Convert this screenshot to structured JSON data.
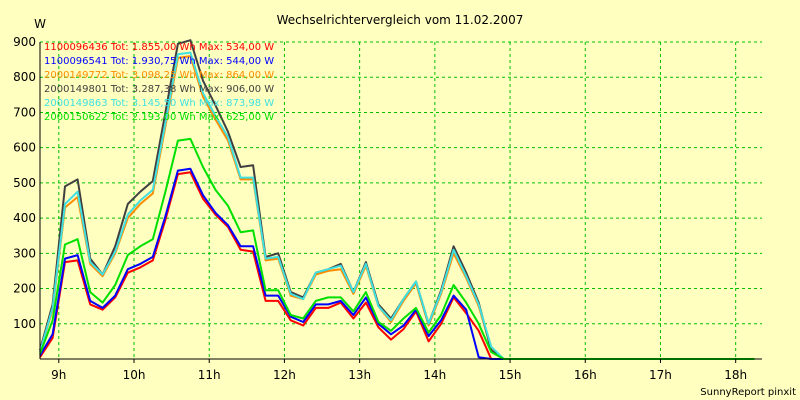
{
  "chart_data": {
    "type": "line",
    "title": "Wechselrichtervergleich vom 11.02.2007",
    "ylabel": "W",
    "xlabel": "",
    "ylim": [
      0,
      900
    ],
    "y_ticks": [
      100,
      200,
      300,
      400,
      500,
      600,
      700,
      800,
      900
    ],
    "xlim": [
      8.75,
      18.35
    ],
    "x_ticks": [
      {
        "value": 9,
        "label": "9h"
      },
      {
        "value": 10,
        "label": "10h"
      },
      {
        "value": 11,
        "label": "11h"
      },
      {
        "value": 12,
        "label": "12h"
      },
      {
        "value": 13,
        "label": "13h"
      },
      {
        "value": 14,
        "label": "14h"
      },
      {
        "value": 15,
        "label": "15h"
      },
      {
        "value": 16,
        "label": "16h"
      },
      {
        "value": 17,
        "label": "17h"
      },
      {
        "value": 18,
        "label": "18h"
      }
    ],
    "grid": true,
    "legend_position": "top-left",
    "x": [
      8.75,
      8.917,
      9.083,
      9.25,
      9.417,
      9.583,
      9.75,
      9.917,
      10.083,
      10.25,
      10.417,
      10.583,
      10.75,
      10.917,
      11.083,
      11.25,
      11.417,
      11.583,
      11.75,
      11.917,
      12.083,
      12.25,
      12.417,
      12.583,
      12.75,
      12.917,
      13.083,
      13.25,
      13.417,
      13.583,
      13.75,
      13.917,
      14.083,
      14.25,
      14.417,
      14.583,
      14.75,
      14.917,
      15.083,
      15.25,
      15.417,
      15.583,
      15.75,
      15.917,
      16.083,
      16.25,
      16.417,
      16.583,
      16.75,
      16.917,
      17.083,
      17.25,
      17.417,
      17.583,
      17.75,
      17.917,
      18.083,
      18.25
    ],
    "series": [
      {
        "name": "1100096436",
        "legend": "1100096436 Tot: 1.855,00 Wh Max: 534,00 W",
        "color": "#ff0000",
        "values": [
          5,
          60,
          275,
          280,
          155,
          140,
          175,
          245,
          260,
          280,
          395,
          525,
          530,
          455,
          410,
          375,
          310,
          305,
          165,
          165,
          110,
          95,
          145,
          145,
          160,
          115,
          160,
          90,
          55,
          85,
          135,
          50,
          100,
          175,
          130,
          80,
          0,
          0,
          0,
          0,
          0,
          0,
          0,
          0,
          0,
          0,
          0,
          0,
          0,
          0,
          0,
          0,
          0,
          0,
          0,
          0,
          0,
          0
        ]
      },
      {
        "name": "1100096541",
        "legend": "1100096541 Tot: 1.930,75 Wh Max: 544,00 W",
        "color": "#0000ff",
        "values": [
          10,
          70,
          285,
          295,
          165,
          145,
          180,
          255,
          270,
          290,
          405,
          535,
          540,
          465,
          415,
          380,
          320,
          320,
          180,
          180,
          120,
          105,
          155,
          155,
          165,
          125,
          175,
          100,
          70,
          95,
          140,
          65,
          110,
          180,
          140,
          5,
          0,
          0,
          0,
          0,
          0,
          0,
          0,
          0,
          0,
          0,
          0,
          0,
          0,
          0,
          0,
          0,
          0,
          0,
          0,
          0,
          0,
          0
        ]
      },
      {
        "name": "2000149772",
        "legend": "2000149772 Tot: 3.098,25 Wh Max: 864,00 W",
        "color": "#ff8c00",
        "values": [
          20,
          140,
          430,
          460,
          270,
          235,
          300,
          400,
          440,
          470,
          660,
          855,
          860,
          745,
          680,
          620,
          510,
          510,
          280,
          285,
          180,
          170,
          240,
          250,
          255,
          185,
          265,
          150,
          105,
          165,
          215,
          95,
          185,
          300,
          230,
          150,
          30,
          0,
          0,
          0,
          0,
          0,
          0,
          0,
          0,
          0,
          0,
          0,
          0,
          0,
          0,
          0,
          0,
          0,
          0,
          0,
          0,
          0
        ]
      },
      {
        "name": "2000149801",
        "legend": "2000149801 Tot: 3.287,38 Wh Max: 906,00 W",
        "color": "#404040",
        "values": [
          25,
          155,
          490,
          510,
          285,
          240,
          320,
          440,
          475,
          505,
          700,
          895,
          905,
          790,
          720,
          645,
          545,
          550,
          290,
          300,
          190,
          175,
          245,
          255,
          270,
          190,
          275,
          155,
          115,
          170,
          220,
          100,
          195,
          320,
          245,
          160,
          25,
          0,
          0,
          0,
          0,
          0,
          0,
          0,
          0,
          0,
          0,
          0,
          0,
          0,
          0,
          0,
          0,
          0,
          0,
          0,
          0,
          0
        ]
      },
      {
        "name": "2000149863",
        "legend": "2000149863 Tot: 3.145,50 Wh Max: 873,98 W",
        "color": "#40e0e0",
        "values": [
          20,
          145,
          440,
          475,
          275,
          240,
          305,
          410,
          450,
          480,
          670,
          865,
          870,
          755,
          690,
          630,
          515,
          515,
          285,
          290,
          185,
          170,
          245,
          255,
          265,
          190,
          270,
          150,
          110,
          170,
          220,
          100,
          190,
          310,
          235,
          155,
          35,
          0,
          0,
          0,
          0,
          0,
          0,
          0,
          0,
          0,
          0,
          0,
          0,
          0,
          0,
          0,
          0,
          0,
          0,
          0,
          0,
          0
        ]
      },
      {
        "name": "2000150622",
        "legend": "2000150622 Tot: 2.193,00 Wh Max: 625,00 W",
        "color": "#00e000",
        "values": [
          15,
          110,
          325,
          340,
          190,
          160,
          210,
          295,
          320,
          340,
          475,
          620,
          625,
          545,
          480,
          435,
          360,
          365,
          195,
          195,
          125,
          115,
          165,
          175,
          175,
          135,
          190,
          105,
          80,
          115,
          145,
          75,
          125,
          210,
          160,
          100,
          20,
          0,
          0,
          0,
          0,
          0,
          0,
          0,
          0,
          0,
          0,
          0,
          0,
          0,
          0,
          0,
          0,
          0,
          0,
          0,
          0,
          0
        ]
      }
    ],
    "credit": "SunnyReport pinxit"
  }
}
